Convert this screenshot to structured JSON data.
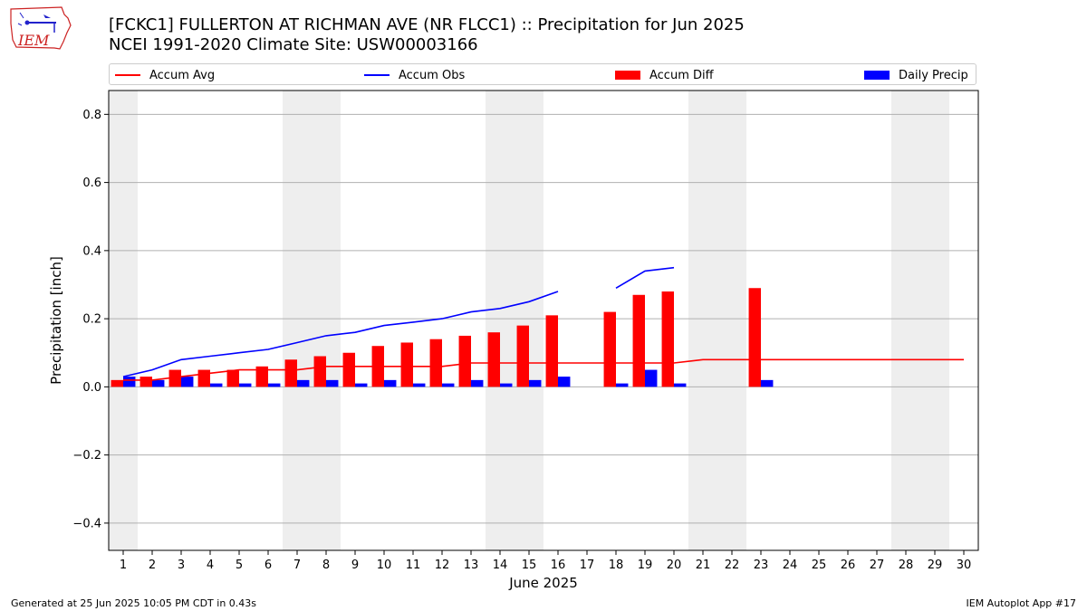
{
  "header": {
    "title": "[FCKC1] FULLERTON AT RICHMAN AVE (NR FLCC1) :: Precipitation for Jun 2025",
    "subtitle": "NCEI 1991-2020 Climate Site: USW00003166",
    "logo_text": "IEM"
  },
  "legend": {
    "accum_avg": "Accum Avg",
    "accum_obs": "Accum Obs",
    "accum_diff": "Accum Diff",
    "daily_precip": "Daily Precip"
  },
  "footer": {
    "left": "Generated at 25 Jun 2025 10:05 PM CDT in 0.43s",
    "right": "IEM Autoplot App #17"
  },
  "colors": {
    "accum_avg": "#ff0000",
    "accum_obs": "#0000ff",
    "accum_diff": "#ff0000",
    "daily_precip": "#0000ff",
    "weekend_shade": "#eeeeee",
    "grid": "#b0b0b0"
  },
  "chart_data": {
    "type": "bar",
    "xlabel": "June 2025",
    "ylabel": "Precipitation [inch]",
    "ylim": [
      -0.48,
      0.87
    ],
    "yticks": [
      -0.4,
      -0.2,
      0.0,
      0.2,
      0.4,
      0.6,
      0.8
    ],
    "ytick_labels": [
      "−0.4",
      "−0.2",
      "0.0",
      "0.2",
      "0.4",
      "0.6",
      "0.8"
    ],
    "x": [
      1,
      2,
      3,
      4,
      5,
      6,
      7,
      8,
      9,
      10,
      11,
      12,
      13,
      14,
      15,
      16,
      17,
      18,
      19,
      20,
      21,
      22,
      23,
      24,
      25,
      26,
      27,
      28,
      29,
      30
    ],
    "weekend_days": [
      1,
      7,
      8,
      14,
      15,
      21,
      22,
      28,
      29
    ],
    "grid": "horizontal",
    "legend_position": "top",
    "series": [
      {
        "name": "Accum Avg",
        "kind": "line",
        "values": [
          0.02,
          0.02,
          0.03,
          0.04,
          0.05,
          0.05,
          0.05,
          0.06,
          0.06,
          0.06,
          0.06,
          0.06,
          0.07,
          0.07,
          0.07,
          0.07,
          0.07,
          0.07,
          0.07,
          0.07,
          0.08,
          0.08,
          0.08,
          0.08,
          0.08,
          0.08,
          0.08,
          0.08,
          0.08,
          0.08
        ]
      },
      {
        "name": "Accum Obs",
        "kind": "line",
        "values": [
          0.03,
          0.05,
          0.08,
          0.09,
          0.1,
          0.11,
          0.13,
          0.15,
          0.16,
          0.18,
          0.19,
          0.2,
          0.22,
          0.23,
          0.25,
          0.28,
          null,
          0.29,
          0.34,
          0.35,
          null,
          null,
          null,
          null,
          null,
          null,
          null,
          null,
          null,
          null
        ]
      },
      {
        "name": "Accum Diff",
        "kind": "bar",
        "values": [
          0.02,
          0.03,
          0.05,
          0.05,
          0.05,
          0.06,
          0.08,
          0.09,
          0.1,
          0.12,
          0.13,
          0.14,
          0.15,
          0.16,
          0.18,
          0.21,
          null,
          0.22,
          0.27,
          0.28,
          null,
          null,
          0.29,
          null,
          null,
          null,
          null,
          null,
          null,
          null
        ]
      },
      {
        "name": "Daily Precip",
        "kind": "bar",
        "values": [
          0.03,
          0.02,
          0.03,
          0.01,
          0.01,
          0.01,
          0.02,
          0.02,
          0.01,
          0.02,
          0.01,
          0.01,
          0.02,
          0.01,
          0.02,
          0.03,
          null,
          0.01,
          0.05,
          0.01,
          null,
          null,
          0.02,
          null,
          null,
          null,
          null,
          null,
          null,
          null
        ]
      }
    ]
  }
}
